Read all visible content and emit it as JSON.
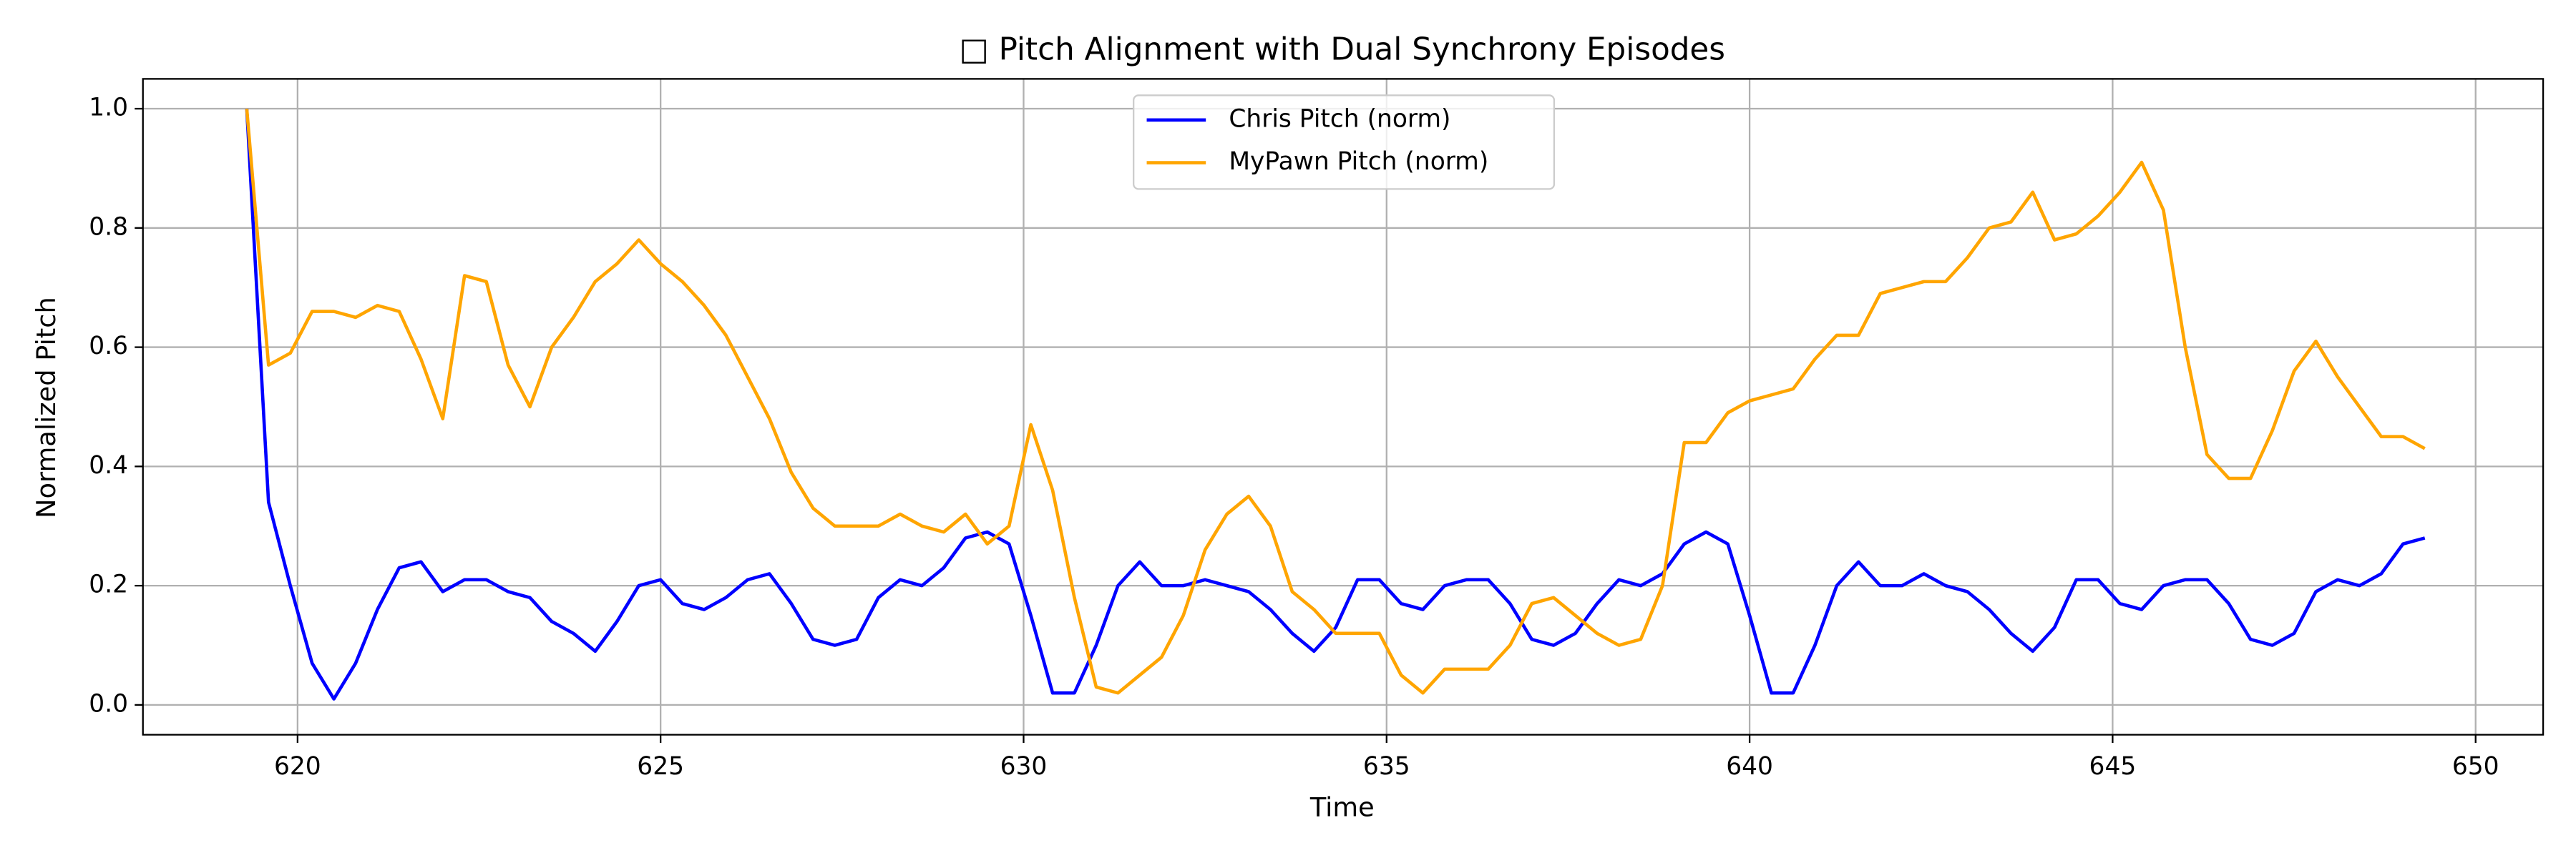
{
  "chart_data": {
    "type": "line",
    "title": "□ Pitch Alignment with Dual Synchrony Episodes",
    "x_label": "Time",
    "y_label": "Normalized Pitch",
    "xlim": [
      617.87,
      650.93
    ],
    "ylim": [
      -0.05,
      1.05
    ],
    "xticks": [
      620,
      625,
      630,
      635,
      640,
      645,
      650
    ],
    "yticks": [
      {
        "value": 0,
        "label": "0.0"
      },
      {
        "value": 0.2,
        "label": "0.2"
      },
      {
        "value": 0.4,
        "label": "0.4"
      },
      {
        "value": 0.6,
        "label": "0.6"
      },
      {
        "value": 0.8,
        "label": "0.8"
      },
      {
        "value": 1,
        "label": "1.0"
      }
    ],
    "grid": true,
    "legend": "upper center",
    "x": [
      619.3,
      619.6,
      619.9,
      620.2,
      620.5,
      620.8,
      621.1,
      621.4,
      621.7,
      622.0,
      622.3,
      622.6,
      622.9,
      623.2,
      623.5,
      623.8,
      624.1,
      624.4,
      624.7,
      625.0,
      625.3,
      625.6,
      625.9,
      626.2,
      626.5,
      626.8,
      627.1,
      627.4,
      627.7,
      628.0,
      628.3,
      628.6,
      628.9,
      629.2,
      629.5,
      629.8,
      630.1,
      630.4,
      630.7,
      631.0,
      631.3,
      631.6,
      631.9,
      632.2,
      632.5,
      632.8,
      633.1,
      633.4,
      633.7,
      634.0,
      634.3,
      634.6,
      634.9,
      635.2,
      635.5,
      635.8,
      636.1,
      636.4,
      636.7,
      637.0,
      637.3,
      637.6,
      637.9,
      638.2,
      638.5,
      638.8,
      639.1,
      639.4,
      639.7,
      640.0,
      640.3,
      640.6,
      640.9,
      641.2,
      641.5,
      641.8,
      642.1,
      642.4,
      642.7,
      643.0,
      643.3,
      643.6,
      643.9,
      644.2,
      644.5,
      644.8,
      645.1,
      645.4,
      645.7,
      646.0,
      646.3,
      646.6,
      646.9,
      647.2,
      647.5,
      647.8,
      648.1,
      648.4,
      648.7,
      649.0,
      649.3
    ],
    "series": [
      {
        "name": "Chris Pitch (norm)",
        "color": "#0000ff",
        "values": [
          1.0,
          0.34,
          0.2,
          0.07,
          0.01,
          0.07,
          0.16,
          0.23,
          0.24,
          0.19,
          0.21,
          0.21,
          0.19,
          0.18,
          0.14,
          0.12,
          0.09,
          0.14,
          0.2,
          0.21,
          0.17,
          0.16,
          0.18,
          0.21,
          0.22,
          0.17,
          0.11,
          0.1,
          0.11,
          0.18,
          0.21,
          0.2,
          0.23,
          0.28,
          0.29,
          0.27,
          0.15,
          0.02,
          0.02,
          0.1,
          0.2,
          0.24,
          0.2,
          0.2,
          0.21,
          0.2,
          0.19,
          0.16,
          0.12,
          0.09,
          0.13,
          0.21,
          0.21,
          0.17,
          0.16,
          0.2,
          0.21,
          0.21,
          0.17,
          0.11,
          0.1,
          0.12,
          0.17,
          0.21,
          0.2,
          0.22,
          0.27,
          0.29,
          0.27,
          0.15,
          0.02,
          0.02,
          0.1,
          0.2,
          0.24,
          0.2,
          0.2,
          0.22,
          0.2,
          0.19,
          0.16,
          0.12,
          0.09,
          0.13,
          0.21,
          0.21,
          0.17,
          0.16,
          0.2,
          0.21,
          0.21,
          0.17,
          0.11,
          0.1,
          0.12,
          0.19,
          0.21,
          0.2,
          0.22,
          0.27,
          0.28
        ]
      },
      {
        "name": "MyPawn Pitch (norm)",
        "color": "#ffa500",
        "values": [
          1.0,
          0.57,
          0.59,
          0.66,
          0.66,
          0.65,
          0.67,
          0.66,
          0.58,
          0.48,
          0.72,
          0.71,
          0.57,
          0.5,
          0.6,
          0.65,
          0.71,
          0.74,
          0.78,
          0.74,
          0.71,
          0.67,
          0.62,
          0.55,
          0.48,
          0.39,
          0.33,
          0.3,
          0.3,
          0.3,
          0.32,
          0.3,
          0.29,
          0.32,
          0.27,
          0.3,
          0.47,
          0.36,
          0.18,
          0.03,
          0.02,
          0.05,
          0.08,
          0.15,
          0.26,
          0.32,
          0.35,
          0.3,
          0.19,
          0.16,
          0.12,
          0.12,
          0.12,
          0.05,
          0.02,
          0.06,
          0.06,
          0.06,
          0.1,
          0.17,
          0.18,
          0.15,
          0.12,
          0.1,
          0.11,
          0.2,
          0.44,
          0.44,
          0.49,
          0.51,
          0.52,
          0.53,
          0.58,
          0.62,
          0.62,
          0.69,
          0.7,
          0.71,
          0.71,
          0.75,
          0.8,
          0.81,
          0.86,
          0.78,
          0.79,
          0.82,
          0.86,
          0.91,
          0.83,
          0.6,
          0.42,
          0.38,
          0.38,
          0.46,
          0.56,
          0.61,
          0.55,
          0.5,
          0.45,
          0.45,
          0.43
        ]
      }
    ]
  }
}
